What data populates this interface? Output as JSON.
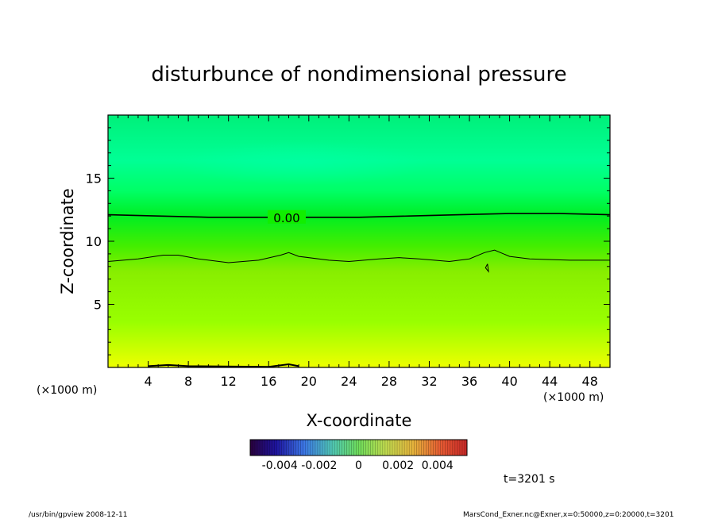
{
  "chart_data": {
    "type": "heatmap",
    "title": "disturbunce of nondimensional pressure",
    "xlabel": "X-coordinate",
    "ylabel": "Z-coordinate",
    "x_unit_left": "(×1000 m)",
    "x_unit_right": "(×1000 m)",
    "xlim": [
      0,
      50
    ],
    "ylim": [
      0,
      20
    ],
    "x_ticks": [
      4,
      8,
      12,
      16,
      20,
      24,
      28,
      32,
      36,
      40,
      44,
      48
    ],
    "y_ticks": [
      5,
      10,
      15
    ],
    "contours": [
      {
        "level_label": "0.00",
        "points": [
          [
            0,
            12.1
          ],
          [
            5,
            12.0
          ],
          [
            10,
            11.9
          ],
          [
            15,
            11.9
          ],
          [
            20,
            11.9
          ],
          [
            25,
            11.9
          ],
          [
            30,
            12.0
          ],
          [
            35,
            12.1
          ],
          [
            40,
            12.2
          ],
          [
            45,
            12.2
          ],
          [
            50,
            12.1
          ]
        ]
      },
      {
        "level_label": "",
        "points": [
          [
            0,
            8.4
          ],
          [
            3,
            8.6
          ],
          [
            5.5,
            8.9
          ],
          [
            7,
            8.9
          ],
          [
            9,
            8.6
          ],
          [
            12,
            8.3
          ],
          [
            15,
            8.5
          ],
          [
            17.2,
            8.9
          ],
          [
            18,
            9.1
          ],
          [
            19,
            8.8
          ],
          [
            22,
            8.5
          ],
          [
            24,
            8.4
          ],
          [
            27,
            8.6
          ],
          [
            29,
            8.7
          ],
          [
            31,
            8.6
          ],
          [
            34,
            8.4
          ],
          [
            36,
            8.6
          ],
          [
            37.5,
            9.1
          ],
          [
            38.5,
            9.3
          ],
          [
            40,
            8.8
          ],
          [
            42,
            8.6
          ],
          [
            46,
            8.5
          ],
          [
            50,
            8.5
          ]
        ]
      }
    ],
    "small_contours": [
      {
        "points": [
          [
            37.8,
            8.2
          ],
          [
            37.9,
            7.6
          ],
          [
            37.6,
            7.9
          ],
          [
            37.8,
            8.2
          ]
        ]
      }
    ],
    "colorbar": {
      "tick_labels": [
        "-0.004",
        "-0.002",
        "0",
        "0.002",
        "0.004"
      ],
      "tick_values": [
        -0.004,
        -0.002,
        0,
        0.002,
        0.004
      ],
      "range": [
        -0.0055,
        0.0055
      ]
    },
    "time_label": "t=3201 s",
    "colors": {
      "top": "#00ff99",
      "upper": "#00ff55",
      "mid": "#11ee00",
      "lower": "#99ff00",
      "bottom": "#eeff00"
    }
  },
  "footer": {
    "left": "/usr/bin/gpview   2008-12-11",
    "right": "MarsCond_Exner.nc@Exner,x=0:50000,z=0:20000,t=3201"
  }
}
